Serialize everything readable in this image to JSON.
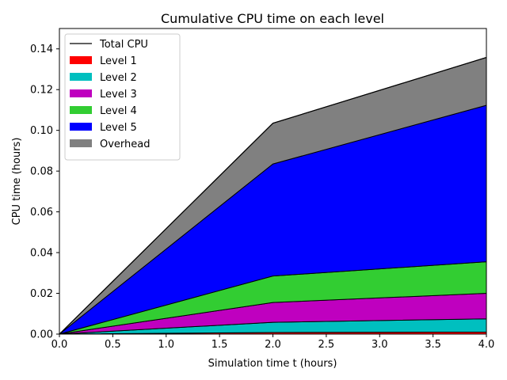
{
  "chart_data": {
    "type": "area",
    "stacked": true,
    "title": "Cumulative CPU time on each level",
    "xlabel": "Simulation time t (hours)",
    "ylabel": "CPU time (hours)",
    "xlim": [
      0,
      4
    ],
    "ylim": [
      0,
      0.15
    ],
    "x_ticks": [
      0.0,
      0.5,
      1.0,
      1.5,
      2.0,
      2.5,
      3.0,
      3.5,
      4.0
    ],
    "y_ticks": [
      0.0,
      0.02,
      0.04,
      0.06,
      0.08,
      0.1,
      0.12,
      0.14
    ],
    "x_tick_labels": [
      "0.0",
      "0.5",
      "1.0",
      "1.5",
      "2.0",
      "2.5",
      "3.0",
      "3.5",
      "4.0"
    ],
    "y_tick_labels": [
      "0.00",
      "0.02",
      "0.04",
      "0.06",
      "0.08",
      "0.10",
      "0.12",
      "0.14"
    ],
    "grid": false,
    "legend_position": "top-left",
    "x": [
      0,
      2,
      4
    ],
    "total": {
      "name": "Total CPU",
      "color": "#000000",
      "values": [
        0,
        0.1035,
        0.1358
      ]
    },
    "series": [
      {
        "name": "Level 1",
        "color": "#ff0000",
        "values": [
          0,
          0.0008,
          0.001
        ]
      },
      {
        "name": "Level 2",
        "color": "#00bfbf",
        "values": [
          0,
          0.005,
          0.0065
        ]
      },
      {
        "name": "Level 3",
        "color": "#bf00bf",
        "values": [
          0,
          0.0097,
          0.0125
        ]
      },
      {
        "name": "Level 4",
        "color": "#32cd32",
        "values": [
          0,
          0.013,
          0.0155
        ]
      },
      {
        "name": "Level 5",
        "color": "#0000ff",
        "values": [
          0,
          0.055,
          0.0768
        ]
      },
      {
        "name": "Overhead",
        "color": "#808080",
        "values": [
          0,
          0.02,
          0.0235
        ]
      }
    ]
  }
}
